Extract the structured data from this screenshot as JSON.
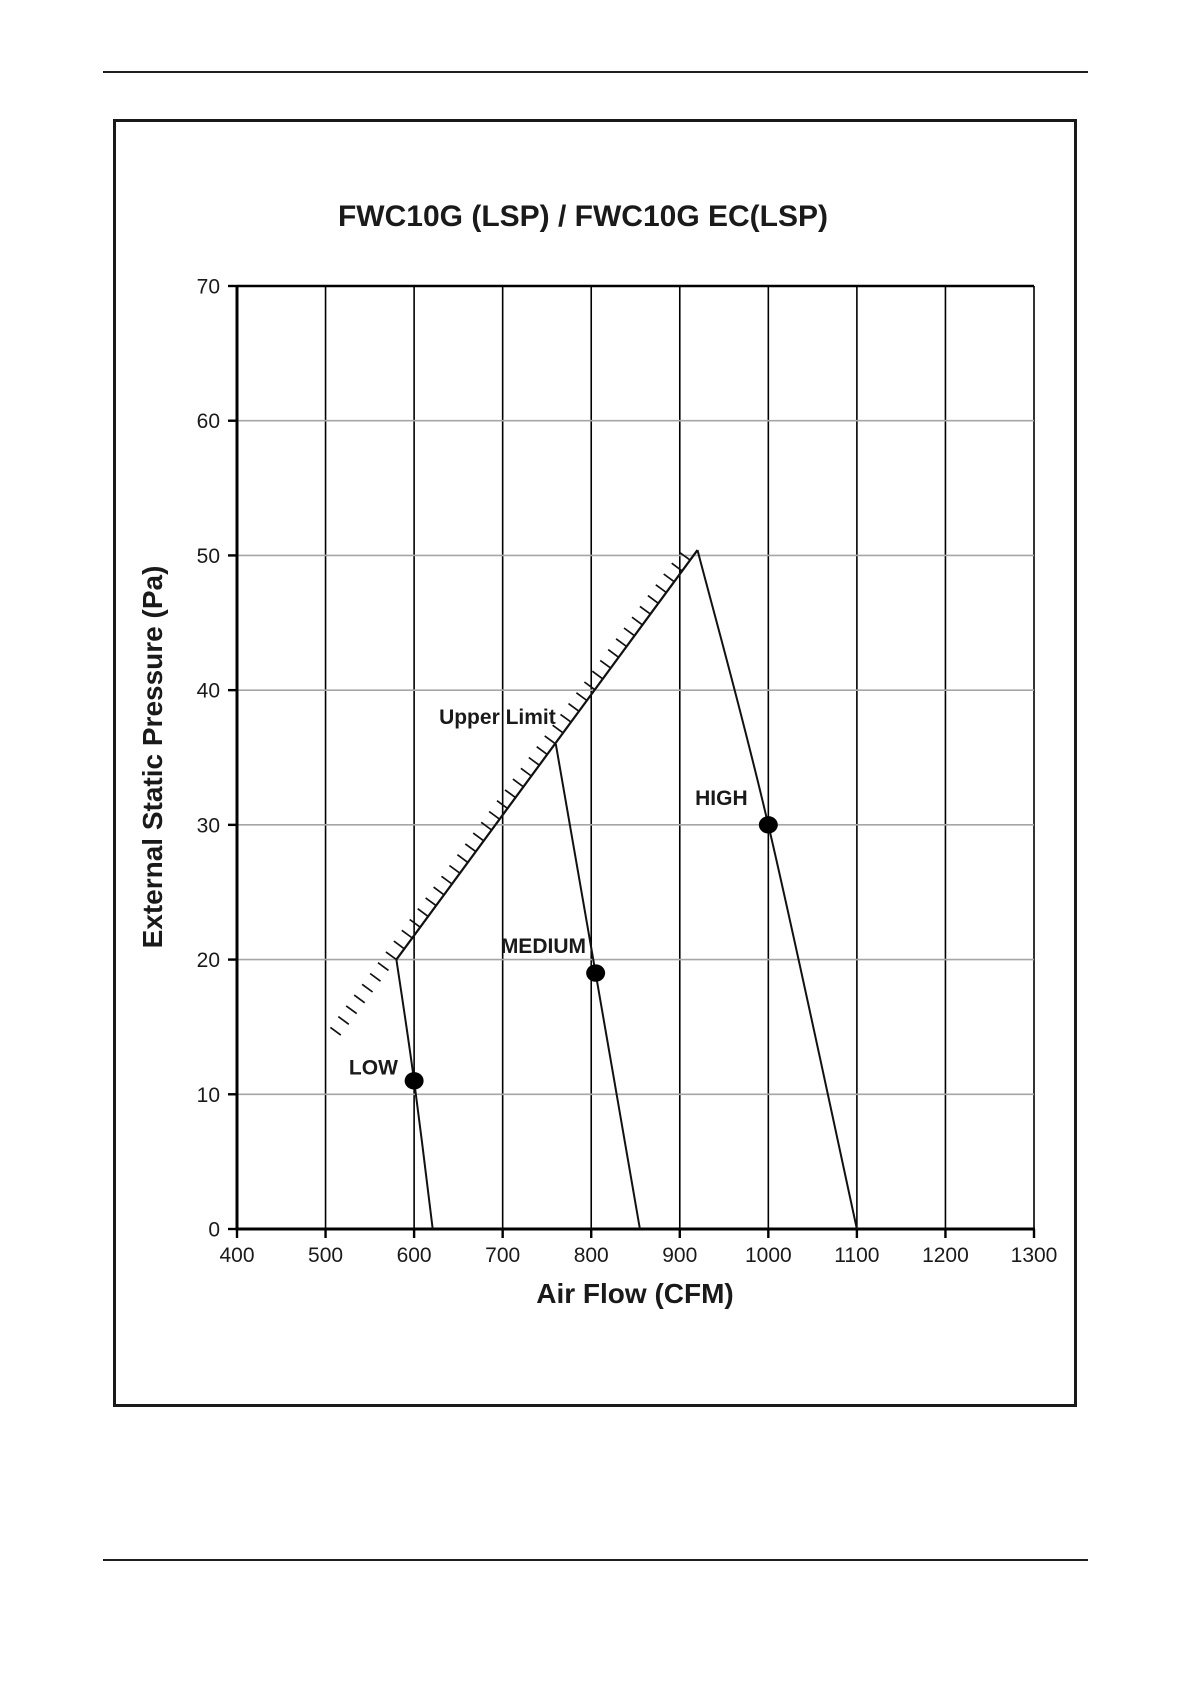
{
  "page": {
    "background": "#ffffff",
    "rule_color": "#1f1f1f",
    "frame_color": "#1a1a1a"
  },
  "chart_data": {
    "type": "line",
    "title": "FWC10G (LSP) / FWC10G EC(LSP)",
    "xlabel": "Air Flow (CFM)",
    "ylabel": "External Static Pressure (Pa)",
    "xlim": [
      400,
      1300
    ],
    "ylim": [
      0,
      70
    ],
    "x_ticks": [
      400,
      500,
      600,
      700,
      800,
      900,
      1000,
      1100,
      1200,
      1300
    ],
    "y_ticks": [
      0,
      10,
      20,
      30,
      40,
      50,
      60,
      70
    ],
    "grid": {
      "vertical": "black every 100 CFM",
      "horizontal": "gray every 10 Pa"
    },
    "legend": "none",
    "series": [
      {
        "name": "LOW",
        "points": [
          [
            580,
            20
          ],
          [
            600,
            11
          ],
          [
            621,
            0
          ]
        ],
        "marker": [
          600,
          11
        ],
        "label": "LOW",
        "label_at": [
          554,
          12
        ]
      },
      {
        "name": "MEDIUM",
        "points": [
          [
            760,
            36
          ],
          [
            805,
            19
          ],
          [
            855,
            0
          ]
        ],
        "marker": [
          805,
          19
        ],
        "label": "MEDIUM",
        "label_at": [
          746,
          21
        ]
      },
      {
        "name": "HIGH",
        "points": [
          [
            920,
            50.4
          ],
          [
            1000,
            30
          ],
          [
            1100,
            0
          ]
        ],
        "marker": [
          1000,
          30
        ],
        "label": "HIGH",
        "label_at": [
          947,
          32
        ]
      },
      {
        "name": "Upper Limit",
        "style": "hatched-boundary",
        "points": [
          [
            580,
            20
          ],
          [
            920,
            50.4
          ]
        ],
        "hatch_side": "upper-left",
        "label": "Upper Limit",
        "label_at": [
          694,
          38
        ]
      }
    ],
    "colors": {
      "line": "#111111",
      "marker": "#000000",
      "grid_horizontal": "#a6a6a6",
      "grid_vertical": "#000000",
      "text": "#1a1a1a"
    }
  }
}
